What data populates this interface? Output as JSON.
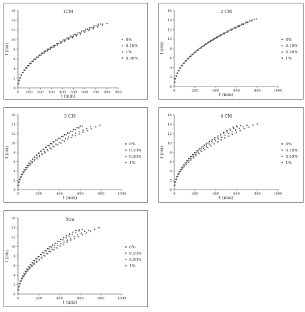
{
  "chart_data": [
    {
      "type": "scatter",
      "title": "1CM",
      "xlabel": "t (min)",
      "ylabel": "I (cm)",
      "xlim": [
        0,
        900
      ],
      "ylim": [
        0,
        16
      ],
      "xticks": [
        "0",
        "100",
        "200",
        "300",
        "400",
        "500",
        "600",
        "700",
        "800",
        "900"
      ],
      "yticks": [
        "0",
        "2",
        "4",
        "6",
        "8",
        "10",
        "12",
        "14",
        "16"
      ],
      "legend_position": "right",
      "legend": [
        "0%",
        "0.18%",
        "1%",
        "0.36%"
      ],
      "series": [
        {
          "name": "0%",
          "k": 0.47,
          "tmax": 800,
          "ymax": 14.1
        },
        {
          "name": "0.18%",
          "k": 0.478,
          "tmax": 760,
          "ymax": 14.2
        },
        {
          "name": "1%",
          "k": 0.485,
          "tmax": 740,
          "ymax": 14.2
        },
        {
          "name": "0.36%",
          "k": 0.49,
          "tmax": 720,
          "ymax": 14.0
        }
      ]
    },
    {
      "type": "scatter",
      "title": "2 CM",
      "xlabel": "t (min)",
      "ylabel": "I (cm)",
      "xlim": [
        0,
        1000
      ],
      "ylim": [
        0,
        16
      ],
      "xticks": [
        "0",
        "200",
        "400",
        "600",
        "800",
        "1000"
      ],
      "yticks": [
        "0",
        "2",
        "4",
        "6",
        "8",
        "10",
        "12",
        "14",
        "16"
      ],
      "legend_position": "right",
      "legend": [
        "0%",
        "0.18%",
        "0.36%",
        "1%"
      ],
      "series": [
        {
          "name": "0%",
          "k": 0.505,
          "tmax": 790,
          "ymax": 14.2
        },
        {
          "name": "0.18%",
          "k": 0.508,
          "tmax": 770,
          "ymax": 14.1
        },
        {
          "name": "0.36%",
          "k": 0.512,
          "tmax": 750,
          "ymax": 14.0
        },
        {
          "name": "1%",
          "k": 0.515,
          "tmax": 730,
          "ymax": 13.9
        }
      ]
    },
    {
      "type": "scatter",
      "title": "3 CM",
      "xlabel": "t (min)",
      "ylabel": "I (cm)",
      "xlim": [
        0,
        1000
      ],
      "ylim": [
        0,
        16
      ],
      "xticks": [
        "0",
        "200",
        "400",
        "600",
        "800",
        "1000"
      ],
      "yticks": [
        "0",
        "2",
        "4",
        "6",
        "8",
        "10",
        "12",
        "14",
        "16"
      ],
      "legend_position": "right",
      "legend": [
        "0%",
        "0.10%",
        "0.50%",
        "1%"
      ],
      "series": [
        {
          "name": "0%",
          "k": 0.555,
          "tmax": 600,
          "ymax": 13.6
        },
        {
          "name": "0.10%",
          "k": 0.545,
          "tmax": 620,
          "ymax": 13.6
        },
        {
          "name": "0.50%",
          "k": 0.51,
          "tmax": 700,
          "ymax": 13.5
        },
        {
          "name": "1%",
          "k": 0.49,
          "tmax": 790,
          "ymax": 13.8
        }
      ]
    },
    {
      "type": "scatter",
      "title": "4 CM",
      "xlabel": "t (min)",
      "ylabel": "I (cm)",
      "xlim": [
        0,
        1000
      ],
      "ylim": [
        0,
        16
      ],
      "xticks": [
        "0",
        "200",
        "400",
        "600",
        "800",
        "1000"
      ],
      "yticks": [
        "0",
        "2",
        "4",
        "6",
        "8",
        "10",
        "12",
        "14",
        "16"
      ],
      "legend_position": "right",
      "legend": [
        "0%",
        "0.10%",
        "0.50%",
        "1%"
      ],
      "series": [
        {
          "name": "0%",
          "k": 0.56,
          "tmax": 600,
          "ymax": 13.6
        },
        {
          "name": "0.10%",
          "k": 0.545,
          "tmax": 640,
          "ymax": 13.7
        },
        {
          "name": "0.50%",
          "k": 0.525,
          "tmax": 700,
          "ymax": 13.8
        },
        {
          "name": "1%",
          "k": 0.5,
          "tmax": 800,
          "ymax": 14.0
        }
      ]
    },
    {
      "type": "scatter",
      "title": "5cm",
      "xlabel": "t (min)",
      "ylabel": "I (cm)",
      "xlim": [
        0,
        1000
      ],
      "ylim": [
        0,
        16
      ],
      "xticks": [
        "0",
        "200",
        "400",
        "600",
        "800",
        "1000"
      ],
      "yticks": [
        "0",
        "2",
        "4",
        "6",
        "8",
        "10",
        "12",
        "14",
        "16"
      ],
      "legend_position": "right",
      "legend": [
        "0%",
        "0.10%",
        "0.50%",
        "1%"
      ],
      "series": [
        {
          "name": "0%",
          "k": 0.565,
          "tmax": 590,
          "ymax": 13.5
        },
        {
          "name": "0.10%",
          "k": 0.548,
          "tmax": 620,
          "ymax": 13.6
        },
        {
          "name": "0.50%",
          "k": 0.52,
          "tmax": 680,
          "ymax": 13.4
        },
        {
          "name": "1%",
          "k": 0.5,
          "tmax": 780,
          "ymax": 14.0
        }
      ]
    }
  ]
}
